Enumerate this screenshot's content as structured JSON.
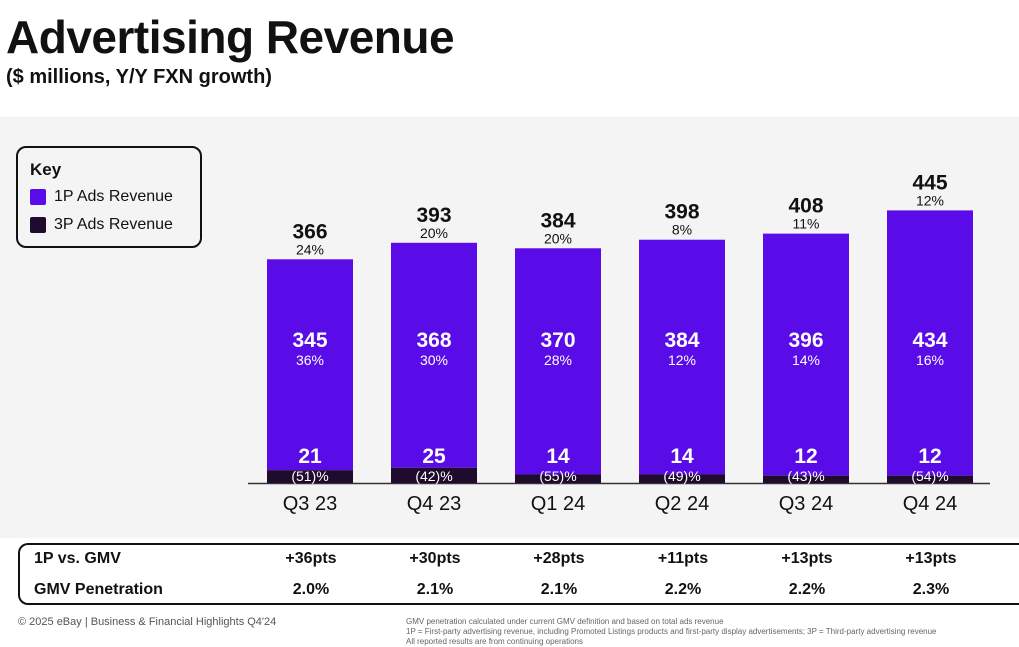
{
  "header": {
    "title": "Advertising Revenue",
    "subtitle": "($ millions, Y/Y FXN growth)"
  },
  "key": {
    "title": "Key",
    "items": [
      {
        "label": "1P Ads Revenue",
        "color": "#5a0ce8"
      },
      {
        "label": "3P Ads Revenue",
        "color": "#1f0b2e"
      }
    ]
  },
  "chart_data": {
    "type": "bar",
    "stacked": true,
    "categories": [
      "Q3 23",
      "Q4 23",
      "Q1 24",
      "Q2 24",
      "Q3 24",
      "Q4 24"
    ],
    "series": [
      {
        "name": "1P Ads Revenue",
        "color": "#5a0ce8",
        "values": [
          345,
          368,
          370,
          384,
          396,
          434
        ],
        "growth": [
          "36%",
          "30%",
          "28%",
          "12%",
          "14%",
          "16%"
        ]
      },
      {
        "name": "3P Ads Revenue",
        "color": "#1f0b2e",
        "values": [
          21,
          25,
          14,
          14,
          12,
          12
        ],
        "growth": [
          "(51)%",
          "(42)%",
          "(55)%",
          "(49)%",
          "(43)%",
          "(54)%"
        ]
      }
    ],
    "totals": [
      366,
      393,
      384,
      398,
      408,
      445
    ],
    "total_growth": [
      "24%",
      "20%",
      "20%",
      "8%",
      "11%",
      "12%"
    ],
    "title": "Advertising Revenue",
    "ylabel": "$ millions",
    "ylim": [
      0,
      445
    ],
    "grid": false,
    "legend": "top-left"
  },
  "table": {
    "rows": [
      {
        "label": "1P vs. GMV",
        "values": [
          "+36pts",
          "+30pts",
          "+28pts",
          "+11pts",
          "+13pts",
          "+13pts"
        ]
      },
      {
        "label": "GMV Penetration",
        "values": [
          "2.0%",
          "2.1%",
          "2.1%",
          "2.2%",
          "2.2%",
          "2.3%"
        ]
      }
    ]
  },
  "footer": {
    "copyright": "© 2025 eBay | Business & Financial Highlights Q4'24",
    "notes": [
      "GMV penetration calculated under current GMV definition and based on total ads revenue",
      "1P = First-party advertising revenue, including Promoted Listings products and first-party display advertisements; 3P = Third-party advertising revenue",
      "All reported results are from continuing operations"
    ]
  }
}
